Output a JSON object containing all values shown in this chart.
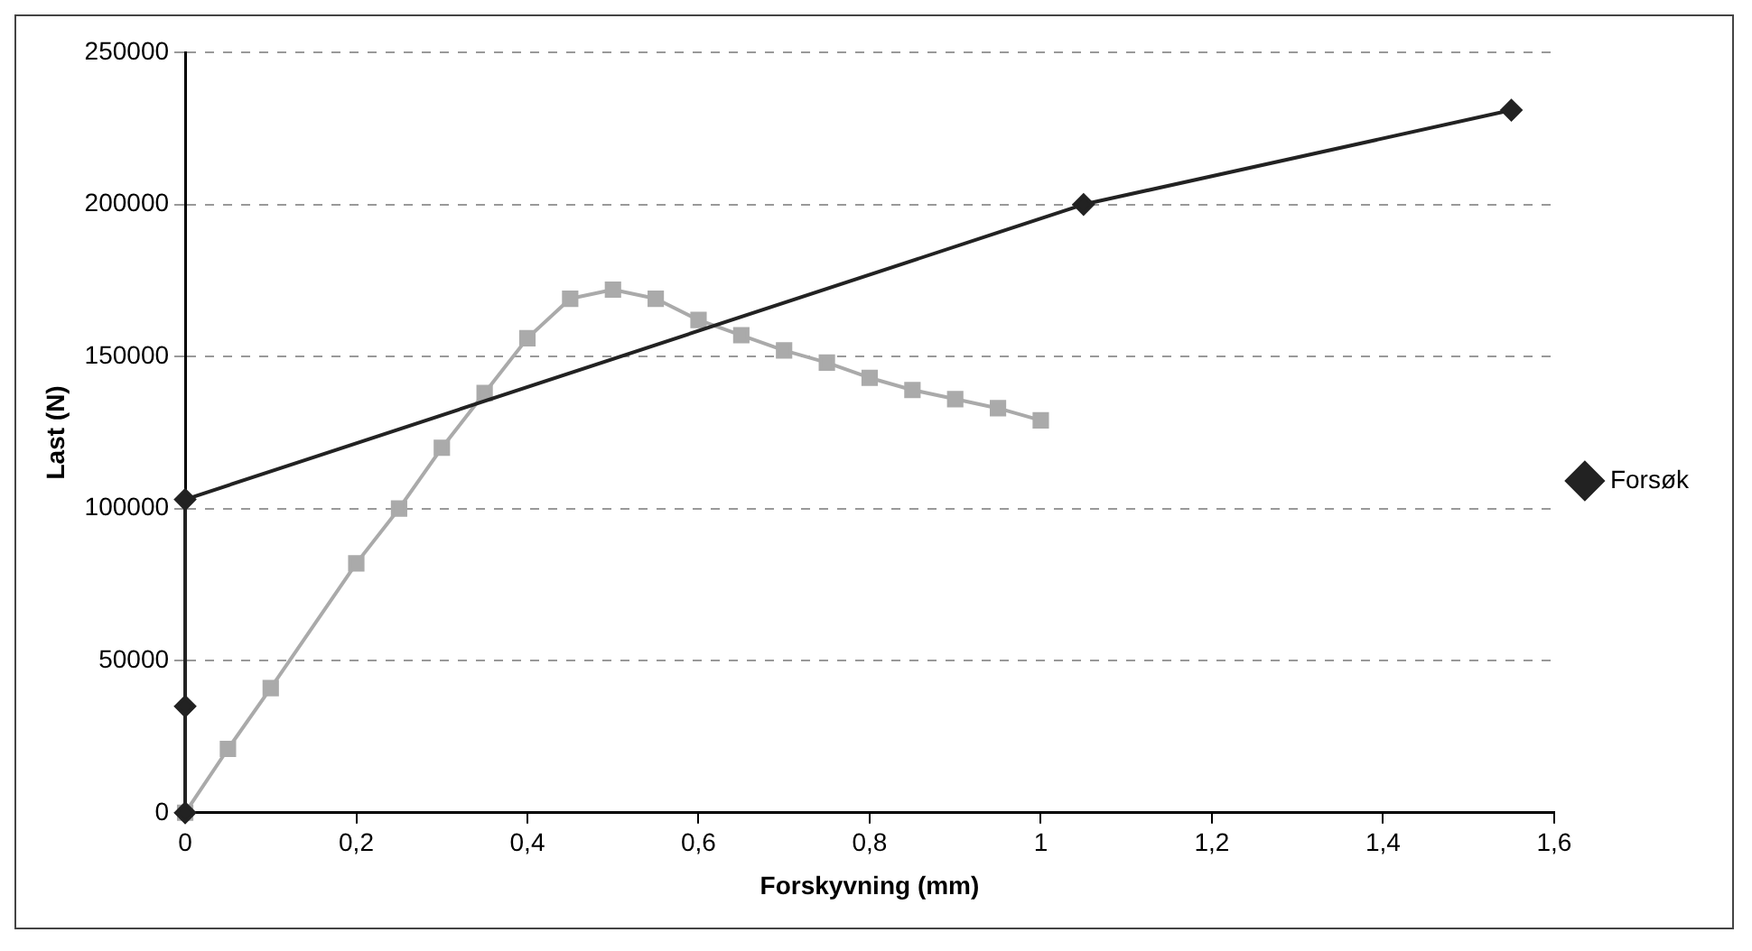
{
  "chart_data": {
    "type": "line",
    "xlabel": "Forskyvning (mm)",
    "ylabel": "Last (N)",
    "xlim": [
      0,
      1.6
    ],
    "xticks": [
      0,
      {
        "value": 0.2,
        "label": "0,2"
      },
      {
        "value": 0.4,
        "label": "0,4"
      },
      {
        "value": 0.6,
        "label": "0,6"
      },
      {
        "value": 0.8,
        "label": "0,8"
      },
      1,
      {
        "value": 1.2,
        "label": "1,2"
      },
      {
        "value": 1.4,
        "label": "1,4"
      },
      {
        "value": 1.6,
        "label": "1,6"
      }
    ],
    "ylim": [
      0,
      250000
    ],
    "yticks": [
      0,
      50000,
      100000,
      150000,
      200000,
      250000
    ],
    "grid": "y",
    "legend": "right",
    "series": [
      {
        "name": "Forsøk",
        "color": "#222222",
        "marker": "diamond",
        "x": [
          0,
          0,
          0,
          1.05,
          1.55
        ],
        "values": [
          0,
          35000,
          103000,
          200000,
          231000
        ]
      },
      {
        "color": "#aaaaaa",
        "marker": "square",
        "x": [
          0,
          0.05,
          0.1,
          0.2,
          0.25,
          0.3,
          0.35,
          0.4,
          0.45,
          0.5,
          0.55,
          0.6,
          0.65,
          0.7,
          0.75,
          0.8,
          0.85,
          0.9,
          0.95,
          1
        ],
        "values": [
          0,
          21000,
          41000,
          82000,
          100000,
          120000,
          138000,
          156000,
          169000,
          172000,
          169000,
          162000,
          157000,
          152000,
          148000,
          143000,
          139000,
          136000,
          133000,
          129000
        ]
      }
    ]
  }
}
